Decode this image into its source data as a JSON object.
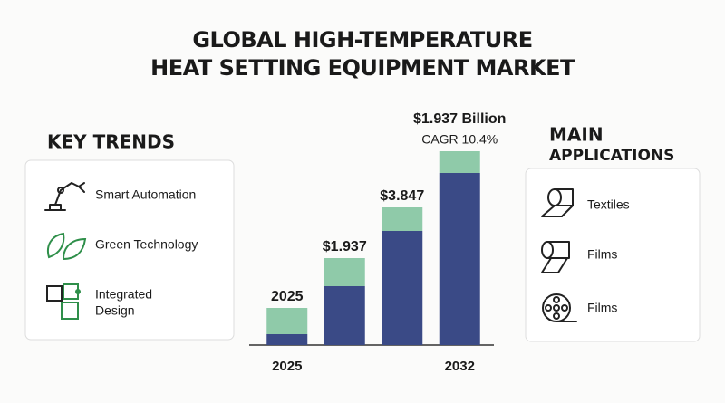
{
  "header": {
    "title_lines": [
      "GLOBAL HIGH-TEMPERATURE",
      "HEAT SETTING EQUIPMENT MARKET"
    ]
  },
  "key_trends": {
    "title": "KEY TRENDS",
    "items": [
      [
        "Smart Automation"
      ],
      [
        "Green Technology"
      ],
      [
        "Integrated",
        "Design"
      ]
    ]
  },
  "main_applications": {
    "title_lines": [
      "MAIN",
      "APPLICATIONS"
    ],
    "items": [
      "Textiles",
      "Films",
      "Films"
    ]
  },
  "chart_data": {
    "type": "bar",
    "stacked": true,
    "categories": [
      "2025",
      null,
      null,
      "2032"
    ],
    "series": [
      {
        "color": "#3a4a86",
        "values": [
          12,
          65,
          126,
          190
        ]
      },
      {
        "color": "#8fcaa9",
        "values": [
          29,
          31,
          26,
          24
        ]
      }
    ],
    "bar_labels": [
      [
        "2025"
      ],
      [
        "$1.937"
      ],
      [
        "$3.847"
      ],
      [
        "$1.937 Billion",
        "CAGR 10.4%"
      ]
    ]
  }
}
